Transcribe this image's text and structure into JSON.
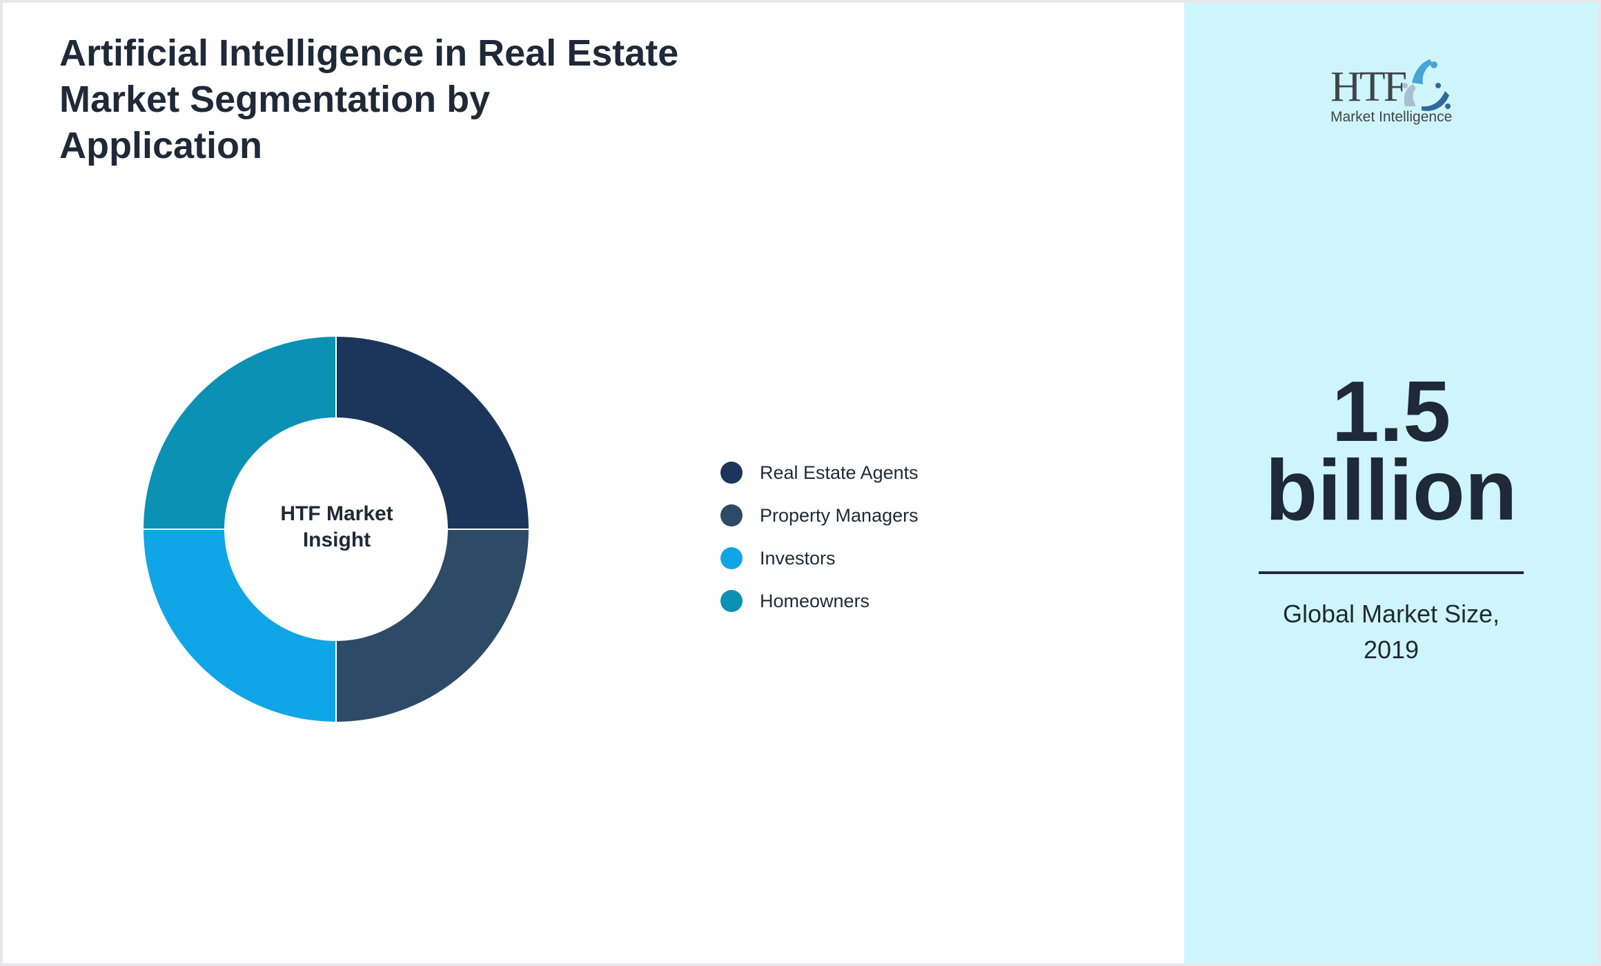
{
  "title": {
    "lines": [
      "Artificial Intelligence in Real Estate",
      "Market Segmentation by",
      "Application"
    ]
  },
  "donut": {
    "center_label_lines": [
      "HTF Market",
      "Insight"
    ]
  },
  "legend": [
    {
      "label": "Real Estate Agents",
      "color": "#1b355b"
    },
    {
      "label": "Property Managers",
      "color": "#2d4a66"
    },
    {
      "label": "Investors",
      "color": "#10a5e6"
    },
    {
      "label": "Homeowners",
      "color": "#0a91b3"
    }
  ],
  "logo": {
    "brand": "HTF",
    "tagline": "Market Intelligence"
  },
  "kpi": {
    "value_lines": [
      "1.5",
      "billion"
    ],
    "label_lines": [
      "Global Market Size,",
      "2019"
    ]
  },
  "colors": {
    "text": "#1f2937",
    "panel_bg": "#cff5fc",
    "border": "#e5e7eb"
  },
  "chart_data": {
    "type": "pie",
    "variant": "donut",
    "title": "Artificial Intelligence in Real Estate Market Segmentation by Application",
    "categories": [
      "Real Estate Agents",
      "Property Managers",
      "Investors",
      "Homeowners"
    ],
    "values": [
      25,
      25,
      25,
      25
    ],
    "colors": [
      "#1b355b",
      "#2d4a66",
      "#10a5e6",
      "#0a91b3"
    ],
    "center_label": "HTF Market Insight",
    "legend_position": "right",
    "annotation": "1.5 billion — Global Market Size, 2019"
  }
}
